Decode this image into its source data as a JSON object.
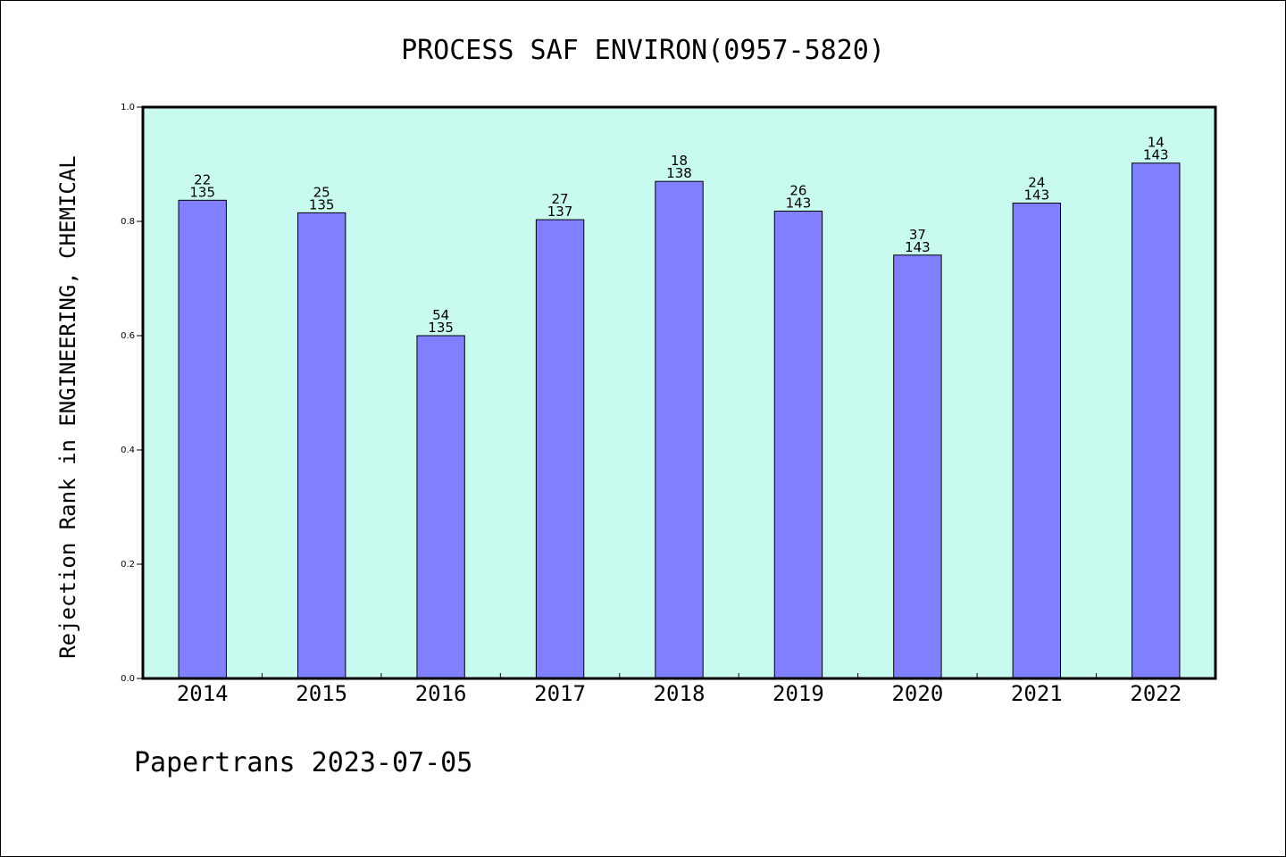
{
  "chart_data": {
    "type": "bar",
    "title": "PROCESS SAF ENVIRON(0957-5820)",
    "ylabel": "Rejection Rank in ENGINEERING, CHEMICAL",
    "xlabel": "",
    "categories": [
      "2014",
      "2015",
      "2016",
      "2017",
      "2018",
      "2019",
      "2020",
      "2021",
      "2022"
    ],
    "values": [
      0.837,
      0.815,
      0.6,
      0.803,
      0.87,
      0.818,
      0.741,
      0.832,
      0.902
    ],
    "label_top": [
      "22",
      "25",
      "54",
      "27",
      "18",
      "26",
      "37",
      "24",
      "14"
    ],
    "label_bottom": [
      "135",
      "135",
      "135",
      "137",
      "138",
      "143",
      "143",
      "143",
      "143"
    ],
    "ylim": [
      0.0,
      1.0
    ],
    "yticks": [
      "0.0",
      "0.2",
      "0.4",
      "0.6",
      "0.8",
      "1.0"
    ],
    "grid": false,
    "colors": {
      "plot_background": "#c8faf0",
      "bar_fill": "#8080ff",
      "bar_stroke": "#000000"
    }
  },
  "footer": {
    "text": "Papertrans 2023-07-05"
  }
}
